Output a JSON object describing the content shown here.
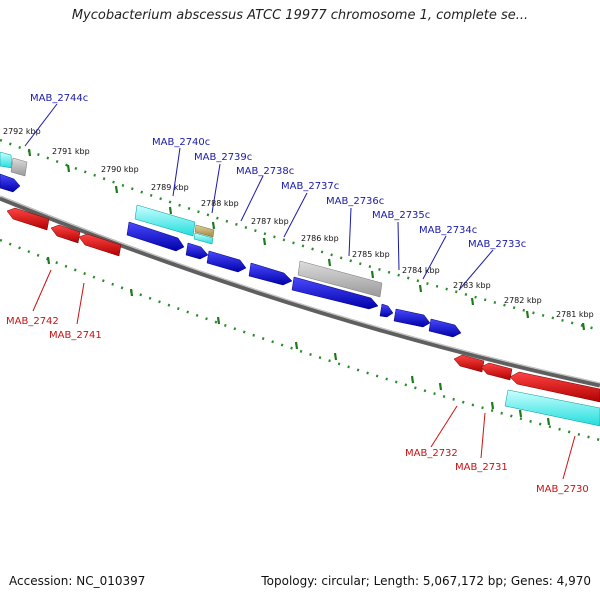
{
  "title": "Mycobacterium abscessus ATCC 19977 chromosome 1, complete se...",
  "footer": {
    "accession": "Accession: NC_010397",
    "summary": "Topology: circular; Length: 5,067,172 bp; Genes: 4,970"
  },
  "colors": {
    "backbone": "#808080",
    "tick": "#2a8c2a",
    "forward_cds": "#1414d2",
    "reverse_cds": "#dd1111",
    "rna": "#3cf0f0",
    "pseudo": "#b4b4b4",
    "other": "#bda860",
    "forward_label": "#1a1aaa",
    "reverse_label": "#cc1111"
  },
  "scale_labels": [
    "2792 kbp",
    "2791 kbp",
    "2790 kbp",
    "2789 kbp",
    "2788 kbp",
    "2787 kbp",
    "2786 kbp",
    "2785 kbp",
    "2784 kbp",
    "2783 kbp",
    "2782 kbp",
    "2781 kbp"
  ],
  "forward_labels": [
    "MAB_2744c",
    "MAB_2740c",
    "MAB_2739c",
    "MAB_2738c",
    "MAB_2737c",
    "MAB_2736c",
    "MAB_2735c",
    "MAB_2734c",
    "MAB_2733c"
  ],
  "reverse_labels": [
    "MAB_2742",
    "MAB_2741",
    "MAB_2732",
    "MAB_2731",
    "MAB_2730"
  ],
  "legend_icons": [
    "forward-strand-gene-icon",
    "reverse-strand-gene-icon",
    "rna-feature-icon",
    "pseudogene-icon"
  ]
}
